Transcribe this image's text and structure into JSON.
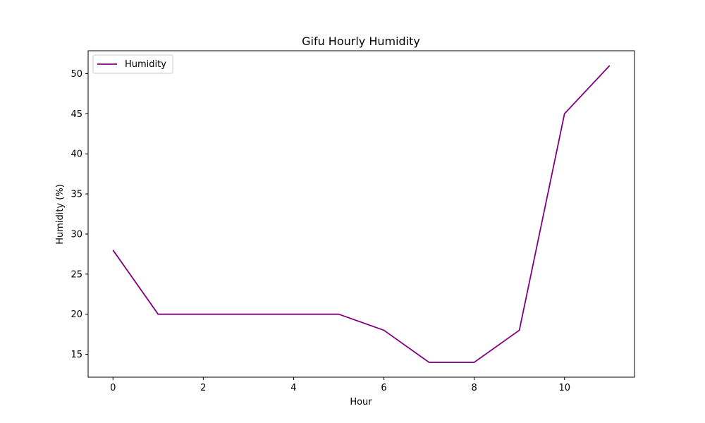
{
  "chart_data": {
    "type": "line",
    "title": "Gifu Hourly Humidity",
    "xlabel": "Hour",
    "ylabel": "Humidity (%)",
    "x": [
      0,
      1,
      2,
      3,
      4,
      5,
      6,
      7,
      8,
      9,
      10,
      11
    ],
    "series": [
      {
        "name": "Humidity",
        "color": "#800080",
        "values": [
          28,
          20,
          20,
          20,
          20,
          20,
          18,
          14,
          14,
          18,
          45,
          51
        ]
      }
    ],
    "xlim": [
      -0.55,
      11.55
    ],
    "ylim": [
      12.15,
      52.85
    ],
    "xticks": [
      0,
      2,
      4,
      6,
      8,
      10
    ],
    "yticks": [
      15,
      20,
      25,
      30,
      35,
      40,
      45,
      50
    ],
    "grid": false,
    "legend_position": "top-left"
  }
}
